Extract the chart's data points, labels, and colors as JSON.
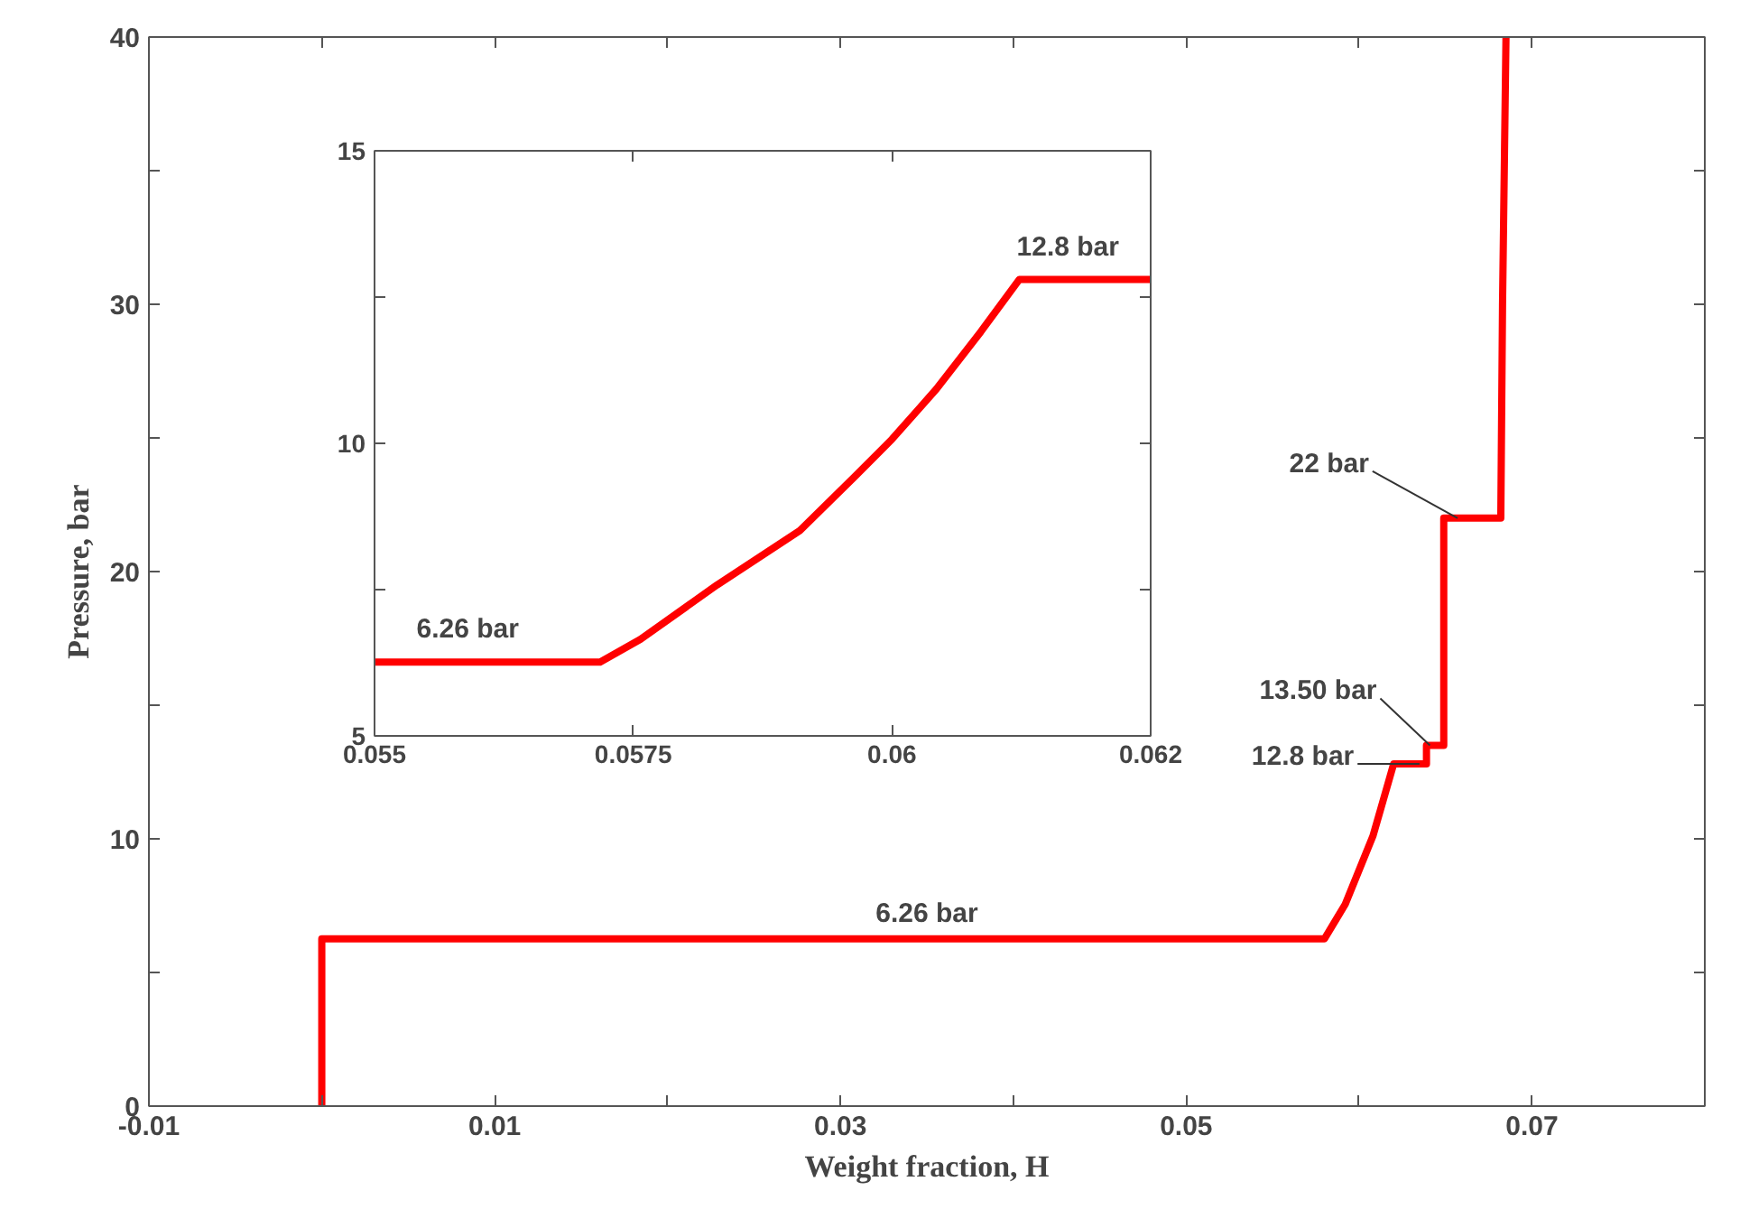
{
  "chart_data": [
    {
      "type": "line",
      "xlabel": "Weight fraction, H",
      "ylabel": "Pressure, bar",
      "color": "#ff0000",
      "grid": false,
      "x": [
        0,
        0,
        0.058,
        0.0592,
        0.0608,
        0.062,
        0.0639,
        0.0639,
        0.0649,
        0.0649,
        0.0682,
        0.0683,
        0.0685
      ],
      "values": [
        0,
        6.26,
        6.26,
        7.55,
        10.1,
        12.8,
        12.8,
        13.5,
        13.5,
        22,
        22,
        30,
        40
      ],
      "xlim": [
        -0.01,
        0.08
      ],
      "xticks": [
        -0.01,
        {
          "value": 0,
          "label": null
        },
        0.01,
        {
          "value": 0.02,
          "label": null
        },
        0.03,
        {
          "value": 0.04,
          "label": null
        },
        0.05,
        {
          "value": 0.06,
          "label": null
        },
        0.07
      ],
      "ylim": [
        0,
        40
      ],
      "yticks": [
        0,
        {
          "value": 5,
          "label": null
        },
        10,
        {
          "value": 15,
          "label": null
        },
        20,
        {
          "value": 25,
          "label": null
        },
        30,
        {
          "value": 35,
          "label": null
        },
        40
      ],
      "annotations": [
        {
          "text": "6.26 bar",
          "x": 0.035,
          "y": 6.26
        },
        {
          "text": "12.8 bar",
          "x": 0.0635,
          "y": 12.8
        },
        {
          "text": "13.50 bar",
          "x": 0.0641,
          "y": 13.5
        },
        {
          "text": "22 bar",
          "x": 0.0657,
          "y": 22
        }
      ]
    },
    {
      "type": "line",
      "color": "#ff0000",
      "grid": false,
      "x": [
        0.055,
        0.05718,
        0.05757,
        0.05831,
        0.05911,
        0.05964,
        0.06,
        0.06043,
        0.06086,
        0.06123,
        0.0625
      ],
      "values": [
        6.26,
        6.26,
        6.65,
        7.58,
        8.51,
        9.43,
        10.07,
        10.93,
        11.91,
        12.8,
        12.8
      ],
      "xlim": [
        0.055,
        0.0625
      ],
      "xticks": [
        0.055,
        0.0575,
        0.06,
        {
          "value": 0.0625,
          "label": "0.062"
        }
      ],
      "ylim": [
        5,
        15
      ],
      "yticks": [
        5,
        {
          "value": 7.5,
          "label": null
        },
        10,
        {
          "value": 12.5,
          "label": null
        },
        15
      ],
      "annotations": [
        {
          "text": "6.26 bar",
          "x": 0.0559,
          "y": 6.26
        },
        {
          "text": "12.8 bar",
          "x": 0.0617,
          "y": 12.8
        }
      ]
    }
  ]
}
